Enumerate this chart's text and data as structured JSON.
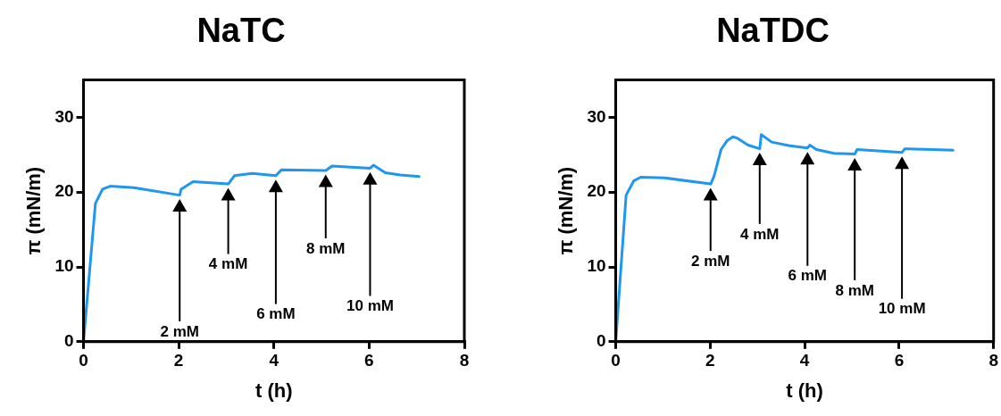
{
  "chart_data": [
    {
      "type": "line",
      "title": "NaTC",
      "xlabel": "t (h)",
      "ylabel": "π (mN/m)",
      "color": "#1f97f0",
      "marker": "none",
      "x": [
        0,
        0.25,
        0.4,
        0.56,
        1.06,
        2.02,
        2.05,
        2.3,
        3.04,
        3.17,
        3.54,
        4.04,
        4.16,
        5.09,
        5.22,
        6.02,
        6.09,
        6.34,
        6.65,
        7.05
      ],
      "values": [
        0,
        18.5,
        20.4,
        20.8,
        20.6,
        19.6,
        20.4,
        21.4,
        21.1,
        22.2,
        22.5,
        22.2,
        23.0,
        22.9,
        23.5,
        23.2,
        23.6,
        22.6,
        22.3,
        22.1
      ],
      "xlim": [
        0,
        8
      ],
      "xticks": [
        0,
        2,
        4,
        6,
        8
      ],
      "ylim": [
        0,
        35
      ],
      "yticks": [
        0,
        10,
        20,
        30
      ],
      "annotations": [
        "2 mM",
        "4 mM",
        "6 mM",
        "8 mM",
        "10 mM"
      ]
    },
    {
      "type": "line",
      "title": "NaTDC",
      "xlabel": "t (h)",
      "ylabel": "π (mN/m)",
      "color": "#1f97f0",
      "marker": "none",
      "x": [
        0,
        0.22,
        0.38,
        0.53,
        1.04,
        2.01,
        2.08,
        2.23,
        2.36,
        2.48,
        2.58,
        2.8,
        3.05,
        3.08,
        3.3,
        3.68,
        4.06,
        4.11,
        4.25,
        4.62,
        5.06,
        5.11,
        6.06,
        6.12,
        6.7,
        7.14
      ],
      "values": [
        0,
        19.6,
        21.5,
        22.0,
        21.9,
        21.1,
        22.1,
        25.7,
        26.9,
        27.4,
        27.2,
        26.3,
        25.8,
        27.7,
        26.7,
        26.2,
        25.9,
        26.3,
        25.7,
        25.2,
        25.1,
        25.7,
        25.3,
        25.8,
        25.7,
        25.6
      ],
      "xlim": [
        0,
        8
      ],
      "xticks": [
        0,
        2,
        4,
        6,
        8
      ],
      "ylim": [
        0,
        35
      ],
      "yticks": [
        0,
        10,
        20,
        30
      ],
      "annotations": [
        "2 mM",
        "4 mM",
        "6 mM",
        "8 mM",
        "10 mM"
      ]
    }
  ]
}
